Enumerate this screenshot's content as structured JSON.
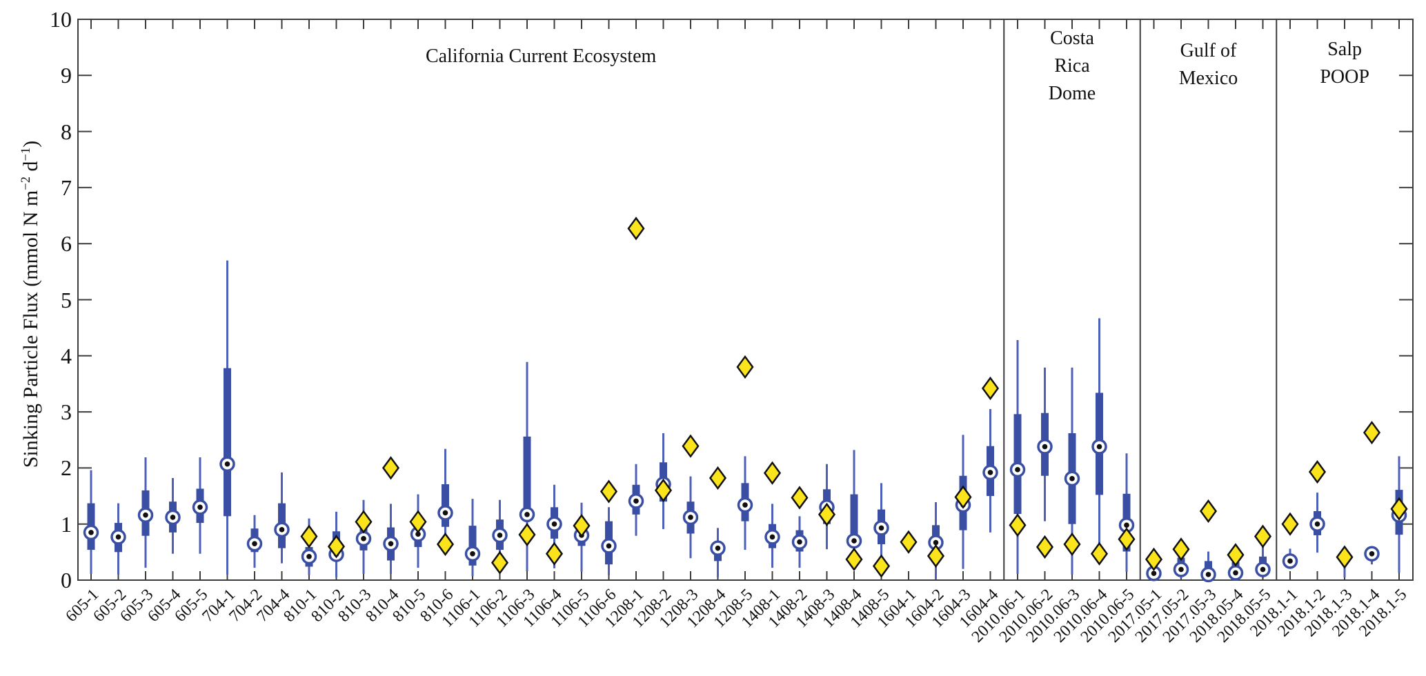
{
  "colors": {
    "box_fill": "#3a4fa3",
    "whisker": "#4e61b6",
    "median_ring": "#3a4fa3",
    "median_fill": "#ffffff",
    "median_dot": "#111111",
    "diamond_fill": "#fbe41c",
    "diamond_stroke": "#111111",
    "axis": "#3c3c3c",
    "text": "#111111"
  },
  "chart_data": {
    "type": "boxplot",
    "title": "",
    "xlabel": "",
    "ylabel": "Sinking Particle Flux (mmol N m-2 d-1)",
    "ylabel_parts": [
      "Sinking Particle Flux (mmol N m",
      "−2",
      " d",
      "−1",
      ")"
    ],
    "ylim": [
      0,
      10
    ],
    "yticks": [
      0,
      1,
      2,
      3,
      4,
      5,
      6,
      7,
      8,
      9,
      10
    ],
    "grid": false,
    "legend": null,
    "regions": [
      {
        "label": "California Current Ecosystem",
        "label_lines": [
          "California Current Ecosystem"
        ],
        "start_index": 0,
        "end_index": 33
      },
      {
        "label": "Costa Rica Dome",
        "label_lines": [
          "Costa",
          "Rica",
          "Dome"
        ],
        "start_index": 34,
        "end_index": 38
      },
      {
        "label": "Gulf of Mexico",
        "label_lines": [
          "Gulf of",
          "Mexico"
        ],
        "start_index": 39,
        "end_index": 43
      },
      {
        "label": "Salp POOP",
        "label_lines": [
          "Salp",
          "POOP"
        ],
        "start_index": 44,
        "end_index": 48
      }
    ],
    "categories": [
      "605-1",
      "605-2",
      "605-3",
      "605-4",
      "605-5",
      "704-1",
      "704-2",
      "704-4",
      "810-1",
      "810-2",
      "810-3",
      "810-4",
      "810-5",
      "810-6",
      "1106-1",
      "1106-2",
      "1106-3",
      "1106-4",
      "1106-5",
      "1106-6",
      "1208-1",
      "1208-2",
      "1208-3",
      "1208-4",
      "1208-5",
      "1408-1",
      "1408-2",
      "1408-3",
      "1408-4",
      "1408-5",
      "1604-1",
      "1604-2",
      "1604-3",
      "1604-4",
      "2010.06-1",
      "2010.06-2",
      "2010.06-3",
      "2010.06-4",
      "2010.06-5",
      "2017.05-1",
      "2017.05-2",
      "2017.05-3",
      "2018.05-4",
      "2018.05-5",
      "2018.1-1",
      "2018.1-2",
      "2018.1-3",
      "2018.1-4",
      "2018.1-5"
    ],
    "boxes": [
      {
        "label": "605-1",
        "whisker_low": 0.11,
        "q1": 0.54,
        "median": 0.85,
        "q3": 1.37,
        "whisker_high": 1.96,
        "diamond": null
      },
      {
        "label": "605-2",
        "whisker_low": 0.1,
        "q1": 0.5,
        "median": 0.77,
        "q3": 1.02,
        "whisker_high": 1.37,
        "diamond": null
      },
      {
        "label": "605-3",
        "whisker_low": 0.22,
        "q1": 0.79,
        "median": 1.16,
        "q3": 1.6,
        "whisker_high": 2.19,
        "diamond": null
      },
      {
        "label": "605-4",
        "whisker_low": 0.47,
        "q1": 0.85,
        "median": 1.12,
        "q3": 1.4,
        "whisker_high": 1.82,
        "diamond": null
      },
      {
        "label": "605-5",
        "whisker_low": 0.47,
        "q1": 1.02,
        "median": 1.3,
        "q3": 1.63,
        "whisker_high": 2.19,
        "diamond": null
      },
      {
        "label": "704-1",
        "whisker_low": 0.1,
        "q1": 1.14,
        "median": 2.07,
        "q3": 3.78,
        "whisker_high": 5.7,
        "diamond": null
      },
      {
        "label": "704-2",
        "whisker_low": 0.22,
        "q1": 0.5,
        "median": 0.65,
        "q3": 0.92,
        "whisker_high": 1.16,
        "diamond": null
      },
      {
        "label": "704-4",
        "whisker_low": 0.3,
        "q1": 0.57,
        "median": 0.9,
        "q3": 1.37,
        "whisker_high": 1.92,
        "diamond": null
      },
      {
        "label": "810-1",
        "whisker_low": 0.09,
        "q1": 0.24,
        "median": 0.42,
        "q3": 0.59,
        "whisker_high": 1.1,
        "diamond": 0.78
      },
      {
        "label": "810-2",
        "whisker_low": 0.05,
        "q1": 0.38,
        "median": 0.46,
        "q3": 0.87,
        "whisker_high": 1.22,
        "diamond": 0.6
      },
      {
        "label": "810-3",
        "whisker_low": 0.11,
        "q1": 0.53,
        "median": 0.74,
        "q3": 0.92,
        "whisker_high": 1.43,
        "diamond": 1.04
      },
      {
        "label": "810-4",
        "whisker_low": 0.11,
        "q1": 0.35,
        "median": 0.65,
        "q3": 0.94,
        "whisker_high": 1.36,
        "diamond": 2.0
      },
      {
        "label": "810-5",
        "whisker_low": 0.22,
        "q1": 0.59,
        "median": 0.82,
        "q3": 0.95,
        "whisker_high": 1.53,
        "diamond": 1.04
      },
      {
        "label": "810-6",
        "whisker_low": 0.52,
        "q1": 0.95,
        "median": 1.2,
        "q3": 1.71,
        "whisker_high": 2.34,
        "diamond": 0.64
      },
      {
        "label": "1106-1",
        "whisker_low": 0.07,
        "q1": 0.26,
        "median": 0.47,
        "q3": 0.97,
        "whisker_high": 1.45,
        "diamond": null
      },
      {
        "label": "1106-2",
        "whisker_low": 0.14,
        "q1": 0.54,
        "median": 0.8,
        "q3": 1.08,
        "whisker_high": 1.43,
        "diamond": 0.31
      },
      {
        "label": "1106-3",
        "whisker_low": 0.16,
        "q1": 1.06,
        "median": 1.17,
        "q3": 2.56,
        "whisker_high": 3.89,
        "diamond": 0.81
      },
      {
        "label": "1106-4",
        "whisker_low": 0.21,
        "q1": 0.74,
        "median": 1.0,
        "q3": 1.3,
        "whisker_high": 1.7,
        "diamond": 0.47
      },
      {
        "label": "1106-5",
        "whisker_low": 0.15,
        "q1": 0.61,
        "median": 0.8,
        "q3": 0.88,
        "whisker_high": 1.38,
        "diamond": 0.97
      },
      {
        "label": "1106-6",
        "whisker_low": 0.09,
        "q1": 0.28,
        "median": 0.61,
        "q3": 1.05,
        "whisker_high": 1.3,
        "diamond": 1.58
      },
      {
        "label": "1208-1",
        "whisker_low": 0.79,
        "q1": 1.17,
        "median": 1.41,
        "q3": 1.7,
        "whisker_high": 2.07,
        "diamond": 6.27
      },
      {
        "label": "1208-2",
        "whisker_low": 0.91,
        "q1": 1.4,
        "median": 1.71,
        "q3": 2.1,
        "whisker_high": 2.62,
        "diamond": 1.6
      },
      {
        "label": "1208-3",
        "whisker_low": 0.39,
        "q1": 0.83,
        "median": 1.12,
        "q3": 1.4,
        "whisker_high": 1.85,
        "diamond": 2.39
      },
      {
        "label": "1208-4",
        "whisker_low": 0.05,
        "q1": 0.34,
        "median": 0.57,
        "q3": 0.68,
        "whisker_high": 0.93,
        "diamond": 1.82
      },
      {
        "label": "1208-5",
        "whisker_low": 0.54,
        "q1": 1.05,
        "median": 1.34,
        "q3": 1.73,
        "whisker_high": 2.21,
        "diamond": 3.8
      },
      {
        "label": "1408-1",
        "whisker_low": 0.22,
        "q1": 0.57,
        "median": 0.77,
        "q3": 1.0,
        "whisker_high": 1.36,
        "diamond": 1.91
      },
      {
        "label": "1408-2",
        "whisker_low": 0.22,
        "q1": 0.51,
        "median": 0.68,
        "q3": 0.89,
        "whisker_high": 1.14,
        "diamond": 1.47
      },
      {
        "label": "1408-3",
        "whisker_low": 0.55,
        "q1": 1.0,
        "median": 1.3,
        "q3": 1.62,
        "whisker_high": 2.07,
        "diamond": 1.17
      },
      {
        "label": "1408-4",
        "whisker_low": 0.21,
        "q1": 0.62,
        "median": 0.7,
        "q3": 1.53,
        "whisker_high": 2.32,
        "diamond": 0.37
      },
      {
        "label": "1408-5",
        "whisker_low": 0.15,
        "q1": 0.64,
        "median": 0.93,
        "q3": 1.26,
        "whisker_high": 1.73,
        "diamond": 0.25
      },
      {
        "label": "1604-1",
        "whisker_low": null,
        "q1": null,
        "median": null,
        "q3": null,
        "whisker_high": null,
        "diamond": 0.68
      },
      {
        "label": "1604-2",
        "whisker_low": 0.02,
        "q1": 0.59,
        "median": 0.67,
        "q3": 0.98,
        "whisker_high": 1.39,
        "diamond": 0.43
      },
      {
        "label": "1604-3",
        "whisker_low": 0.2,
        "q1": 0.89,
        "median": 1.34,
        "q3": 1.86,
        "whisker_high": 2.59,
        "diamond": 1.48
      },
      {
        "label": "1604-4",
        "whisker_low": 0.85,
        "q1": 1.5,
        "median": 1.92,
        "q3": 2.39,
        "whisker_high": 3.05,
        "diamond": 3.42
      },
      {
        "label": "2010.06-1",
        "whisker_low": 0.11,
        "q1": 1.18,
        "median": 1.97,
        "q3": 2.96,
        "whisker_high": 4.28,
        "diamond": 0.98
      },
      {
        "label": "2010.06-2",
        "whisker_low": 1.05,
        "q1": 1.86,
        "median": 2.38,
        "q3": 2.98,
        "whisker_high": 3.79,
        "diamond": 0.59
      },
      {
        "label": "2010.06-3",
        "whisker_low": 0.1,
        "q1": 1.0,
        "median": 1.81,
        "q3": 2.62,
        "whisker_high": 3.79,
        "diamond": 0.64
      },
      {
        "label": "2010.06-4",
        "whisker_low": 0.35,
        "q1": 1.52,
        "median": 2.38,
        "q3": 3.34,
        "whisker_high": 4.67,
        "diamond": 0.47
      },
      {
        "label": "2010.06-5",
        "whisker_low": 0.15,
        "q1": 0.51,
        "median": 0.98,
        "q3": 1.54,
        "whisker_high": 2.26,
        "diamond": 0.73
      },
      {
        "label": "2017.05-1",
        "whisker_low": 0.02,
        "q1": 0.1,
        "median": 0.12,
        "q3": 0.3,
        "whisker_high": 0.42,
        "diamond": 0.37
      },
      {
        "label": "2017.05-2",
        "whisker_low": 0.03,
        "q1": 0.15,
        "median": 0.19,
        "q3": 0.4,
        "whisker_high": 0.62,
        "diamond": 0.55
      },
      {
        "label": "2017.05-3",
        "whisker_low": 0.02,
        "q1": 0.13,
        "median": 0.1,
        "q3": 0.34,
        "whisker_high": 0.51,
        "diamond": 1.23
      },
      {
        "label": "2018.05-4",
        "whisker_low": 0.02,
        "q1": 0.12,
        "median": 0.13,
        "q3": 0.32,
        "whisker_high": 0.5,
        "diamond": 0.45
      },
      {
        "label": "2018.05-5",
        "whisker_low": 0.04,
        "q1": 0.18,
        "median": 0.19,
        "q3": 0.42,
        "whisker_high": 0.62,
        "diamond": 0.78
      },
      {
        "label": "2018.1-1",
        "whisker_low": 0.2,
        "q1": 0.26,
        "median": 0.34,
        "q3": 0.44,
        "whisker_high": 0.56,
        "diamond": 1.0
      },
      {
        "label": "2018.1-2",
        "whisker_low": 0.49,
        "q1": 0.8,
        "median": 1.0,
        "q3": 1.23,
        "whisker_high": 1.56,
        "diamond": 1.93
      },
      {
        "label": "2018.1-3",
        "whisker_low": 0.05,
        "q1": null,
        "median": null,
        "q3": null,
        "whisker_high": 0.45,
        "diamond": 0.41
      },
      {
        "label": "2018.1-4",
        "whisker_low": 0.28,
        "q1": 0.42,
        "median": 0.47,
        "q3": 0.52,
        "whisker_high": 0.56,
        "diamond": 2.63
      },
      {
        "label": "2018.1-5",
        "whisker_low": 0.13,
        "q1": 0.81,
        "median": 1.16,
        "q3": 1.61,
        "whisker_high": 2.21,
        "diamond": 1.27
      }
    ]
  }
}
